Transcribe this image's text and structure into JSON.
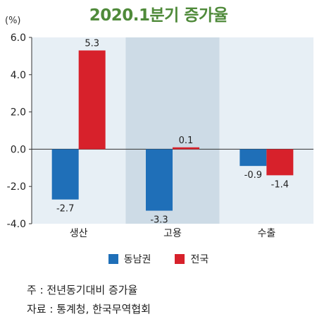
{
  "colors": {
    "series0": "#1f6fb8",
    "series1": "#d7212b",
    "band_light": "#e7eff5",
    "band_dark": "#cddbe6"
  },
  "chart_data": {
    "type": "bar",
    "title": "2020.1분기 증가율",
    "unit_label": "(%)",
    "categories": [
      "생산",
      "고용",
      "수출"
    ],
    "series": [
      {
        "name": "동남권",
        "values": [
          -2.7,
          -3.3,
          -0.9
        ],
        "labels": [
          "-2.7",
          "-3.3",
          "-0.9"
        ]
      },
      {
        "name": "전국",
        "values": [
          5.3,
          0.1,
          -1.4
        ],
        "labels": [
          "5.3",
          "0.1",
          "-1.4"
        ]
      }
    ],
    "ylim": [
      -4.0,
      6.0
    ],
    "yticks": [
      6.0,
      4.0,
      2.0,
      0.0,
      -2.0,
      -4.0
    ],
    "ytick_labels": [
      "6.0",
      "4.0",
      "2.0",
      "0.0",
      "-2.0",
      "-4.0"
    ],
    "grid": false,
    "legend_position": "bottom"
  },
  "notes": {
    "line1": "주 : 전년동기대비 증가율",
    "line2": "자료 : 통계청, 한국무역협회"
  }
}
